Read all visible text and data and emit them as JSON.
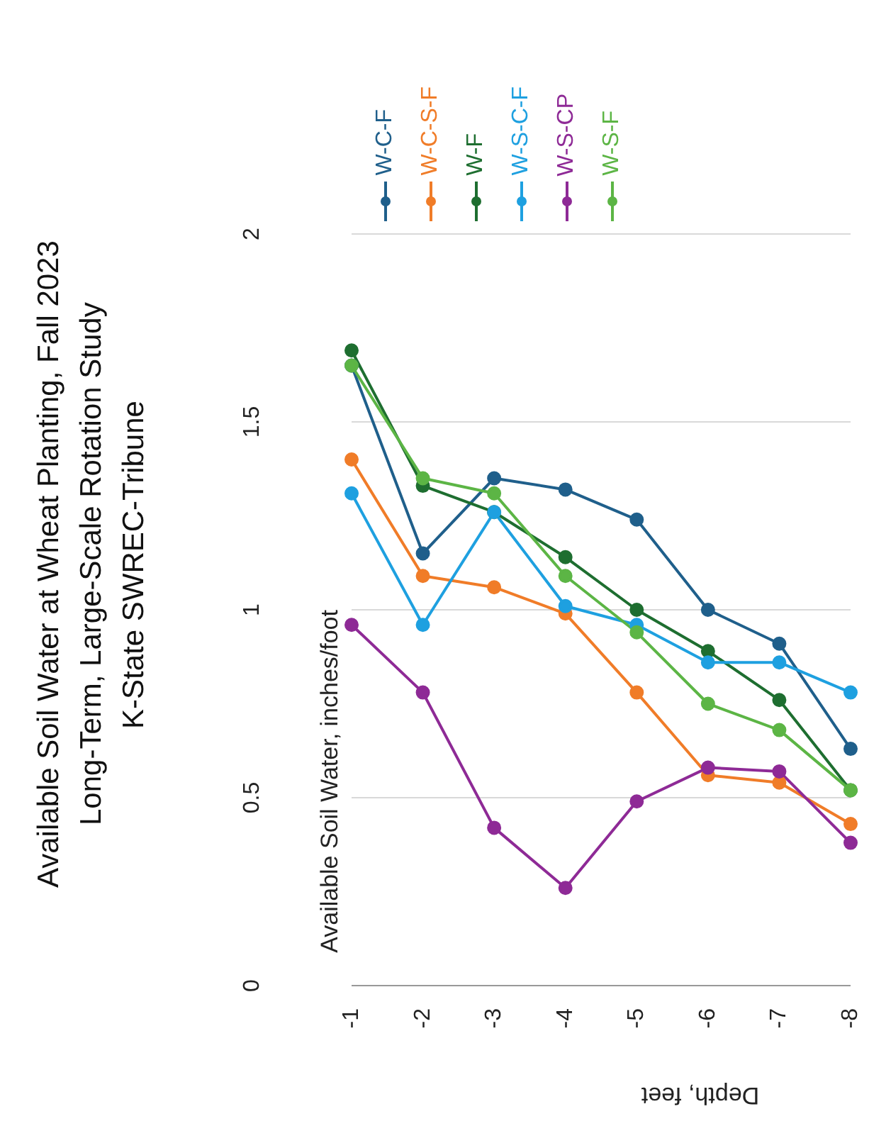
{
  "chart_data": {
    "type": "line",
    "title": "Available Soil Water at Wheat Planting, Fall 2023\nLong-Term, Large-Scale Rotation Study\nK-State SWREC-Tribune",
    "xlabel": "Depth, feet",
    "ylabel": "Available Soil Water, inches/foot",
    "categories": [
      "-1",
      "-2",
      "-3",
      "-4",
      "-5",
      "-6",
      "-7",
      "-8"
    ],
    "series": [
      {
        "name": "W-C-F",
        "color": "#1f5f8b",
        "values": [
          1.65,
          1.15,
          1.35,
          1.32,
          1.24,
          1.0,
          0.91,
          0.63
        ]
      },
      {
        "name": "W-C-S-F",
        "color": "#f07c28",
        "values": [
          1.4,
          1.09,
          1.06,
          0.99,
          0.78,
          0.56,
          0.54,
          0.43
        ]
      },
      {
        "name": "W-F",
        "color": "#1e6e30",
        "values": [
          1.69,
          1.33,
          1.26,
          1.14,
          1.0,
          0.89,
          0.76,
          0.52
        ]
      },
      {
        "name": "W-S-C-F",
        "color": "#1ea0e0",
        "values": [
          1.31,
          0.96,
          1.26,
          1.01,
          0.96,
          0.86,
          0.86,
          0.78
        ]
      },
      {
        "name": "W-S-CP",
        "color": "#8e2a96",
        "values": [
          0.96,
          0.78,
          0.42,
          0.26,
          0.49,
          0.58,
          0.57,
          0.38
        ]
      },
      {
        "name": "W-S-F",
        "color": "#5cb545",
        "values": [
          1.65,
          1.35,
          1.31,
          1.09,
          0.94,
          0.75,
          0.68,
          0.52
        ]
      }
    ],
    "ylim": [
      0,
      2
    ],
    "yticks": [
      0,
      0.5,
      1,
      1.5,
      2
    ],
    "grid": "y",
    "legend": "top",
    "marker": "circle",
    "line_style": "solid"
  }
}
